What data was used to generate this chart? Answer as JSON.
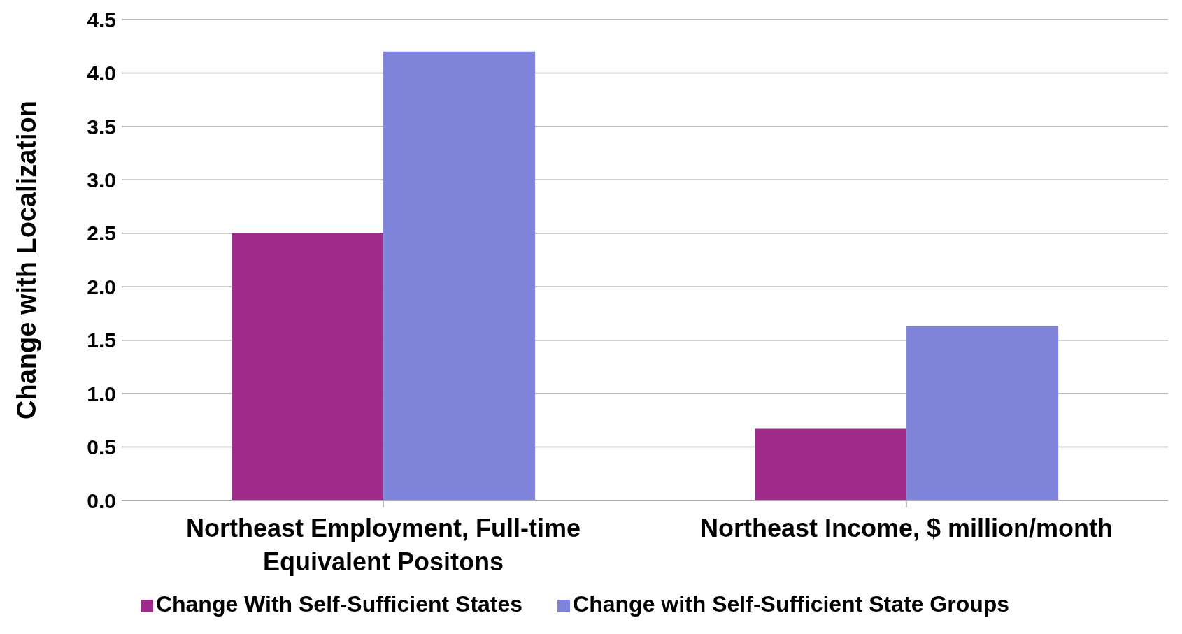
{
  "chart_data": {
    "type": "bar",
    "ylabel": "Change with Localization",
    "categories": [
      "Northeast Employment, Full-time Equivalent Positons",
      "Northeast Income, $ million/month"
    ],
    "series": [
      {
        "name": "Change With Self-Sufficient States",
        "color": "#9e2a8a",
        "values": [
          2.5,
          0.67
        ]
      },
      {
        "name": "Change with Self-Sufficient State Groups",
        "color": "#7f83d9",
        "values": [
          4.2,
          1.63
        ]
      }
    ],
    "ylim": [
      0,
      4.5
    ],
    "yticks": [
      {
        "value": 0,
        "label": "0.0"
      },
      {
        "value": 0.5,
        "label": "0.5"
      },
      {
        "value": 1,
        "label": "1.0"
      },
      {
        "value": 1.5,
        "label": "1.5"
      },
      {
        "value": 2,
        "label": "2.0"
      },
      {
        "value": 2.5,
        "label": "2.5"
      },
      {
        "value": 3,
        "label": "3.0"
      },
      {
        "value": 3.5,
        "label": "3.5"
      },
      {
        "value": 4,
        "label": "4.0"
      },
      {
        "value": 4.5,
        "label": "4.5"
      }
    ],
    "grid": "y",
    "legend": "bottom"
  }
}
